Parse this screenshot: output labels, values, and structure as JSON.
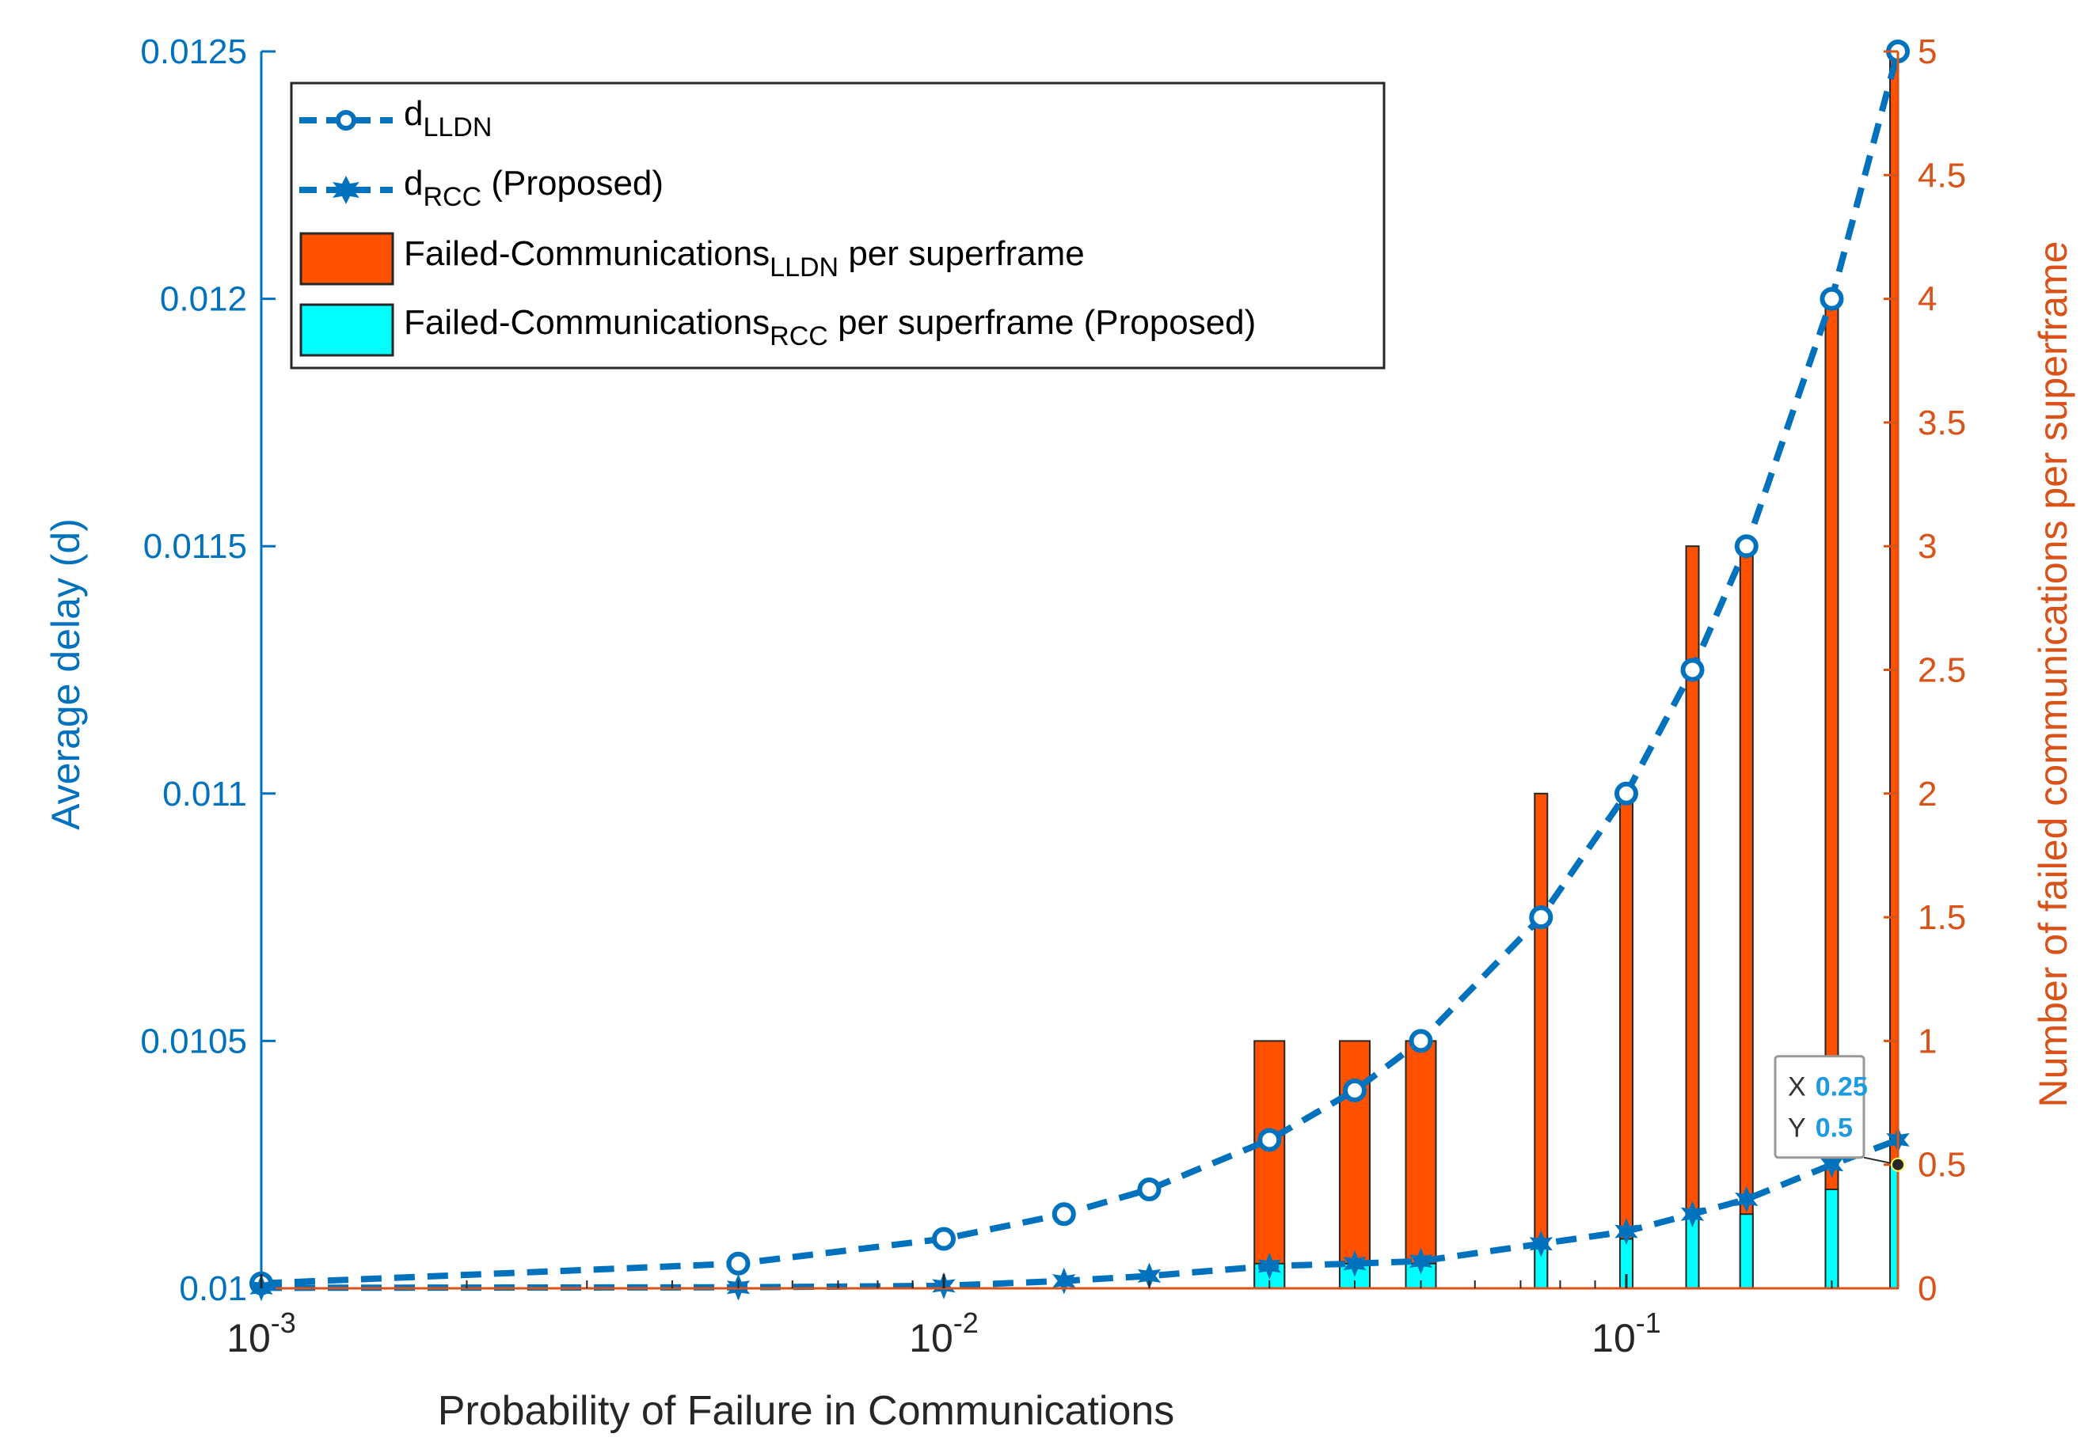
{
  "chart_data": {
    "type": "line+bar",
    "xscale": "log",
    "xlim": [
      0.001,
      0.25
    ],
    "xlabel": "Probability of Failure in Communications",
    "xticks": [
      {
        "value": 0.001,
        "base": "10",
        "exp": "-3"
      },
      {
        "value": 0.01,
        "base": "10",
        "exp": "-2"
      },
      {
        "value": 0.1,
        "base": "10",
        "exp": "-1"
      }
    ],
    "left_axis": {
      "label": "Average delay (d)",
      "ylim": [
        0.01,
        0.0125
      ],
      "ticks": [
        "0.01",
        "0.0105",
        "0.011",
        "0.0115",
        "0.012",
        "0.0125"
      ],
      "color": "#0072BD"
    },
    "right_axis": {
      "label": "Number of failed communications per superframe",
      "ylim": [
        0,
        5
      ],
      "ticks": [
        "0",
        "0.5",
        "1",
        "1.5",
        "2",
        "2.5",
        "3",
        "3.5",
        "4",
        "4.5",
        "5"
      ],
      "color": "#D95319"
    },
    "line_series": [
      {
        "name": "d_LLDN",
        "marker": "circle",
        "color": "#0072BD",
        "x": [
          0.001,
          0.005,
          0.01,
          0.015,
          0.02,
          0.03,
          0.04,
          0.05,
          0.075,
          0.1,
          0.125,
          0.15,
          0.2,
          0.25
        ],
        "y": [
          0.01001,
          0.01005,
          0.0101,
          0.01015,
          0.0102,
          0.0103,
          0.0104,
          0.0105,
          0.01075,
          0.011,
          0.01125,
          0.0115,
          0.012,
          0.0125
        ]
      },
      {
        "name": "d_RCC (Proposed)",
        "marker": "star",
        "color": "#0072BD",
        "x": [
          0.001,
          0.005,
          0.01,
          0.015,
          0.02,
          0.03,
          0.04,
          0.05,
          0.075,
          0.1,
          0.125,
          0.15,
          0.2,
          0.25
        ],
        "y": [
          0.010001,
          0.010002,
          0.010005,
          0.010015,
          0.010025,
          0.010045,
          0.01005,
          0.010055,
          0.01009,
          0.010115,
          0.01015,
          0.01018,
          0.01025,
          0.0103
        ]
      }
    ],
    "bar_series": [
      {
        "name": "Failed-Communications_LLDN per superframe",
        "color": "#FF5100",
        "x": [
          0.03,
          0.04,
          0.05,
          0.075,
          0.1,
          0.125,
          0.15,
          0.2,
          0.25
        ],
        "values": [
          1,
          1,
          1,
          2,
          2,
          3,
          3,
          4,
          5
        ]
      },
      {
        "name": "Failed-Communications_RCC per superframe (Proposed)",
        "color": "#00FFFF",
        "x": [
          0.03,
          0.04,
          0.05,
          0.075,
          0.1,
          0.125,
          0.15,
          0.2,
          0.25
        ],
        "values": [
          0.1,
          0.1,
          0.1,
          0.2,
          0.2,
          0.3,
          0.3,
          0.4,
          0.5
        ]
      }
    ],
    "legend": {
      "placement": "top-left",
      "entries": [
        {
          "main": "d",
          "sub": "LLDN",
          "suffix": ""
        },
        {
          "main": "d",
          "sub": "RCC",
          "suffix": " (Proposed)"
        },
        {
          "main": "Failed-Communications",
          "sub": "LLDN",
          "suffix": " per superframe"
        },
        {
          "main": "Failed-Communications",
          "sub": "RCC",
          "suffix": " per superframe (Proposed)"
        }
      ]
    },
    "datatip": {
      "x_label": "X",
      "x_value": "0.25",
      "y_label": "Y",
      "y_value": "0.5",
      "x": 0.25,
      "y": 0.5
    }
  }
}
